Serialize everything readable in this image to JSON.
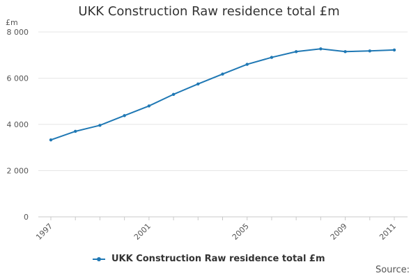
{
  "chart_data": {
    "type": "line",
    "title": "UKK Construction Raw residence total £m",
    "ylabel": "£m",
    "xlabel": "",
    "x": [
      1997,
      1998,
      1999,
      2000,
      2001,
      2002,
      2003,
      2004,
      2005,
      2006,
      2007,
      2008,
      2009,
      2010,
      2011
    ],
    "series": [
      {
        "name": "UKK Construction Raw residence total £m",
        "values": [
          3330,
          3700,
          3960,
          4380,
          4800,
          5300,
          5750,
          6180,
          6600,
          6900,
          7150,
          7270,
          7150,
          7180,
          7220
        ]
      }
    ],
    "ylim": [
      0,
      8000
    ],
    "yticks": [
      0,
      2000,
      4000,
      6000,
      8000
    ],
    "ytick_labels": [
      "0",
      "2 000",
      "4 000",
      "6 000",
      "8 000"
    ],
    "xtick_labels": [
      "1997",
      "2001",
      "2005",
      "2009",
      "2011"
    ],
    "xticks": [
      1997,
      2001,
      2005,
      2009,
      2011
    ],
    "grid": "horizontal",
    "legend": "bottom",
    "line_color": "#1f78b4"
  },
  "footer": {
    "source_label": "Source:"
  }
}
